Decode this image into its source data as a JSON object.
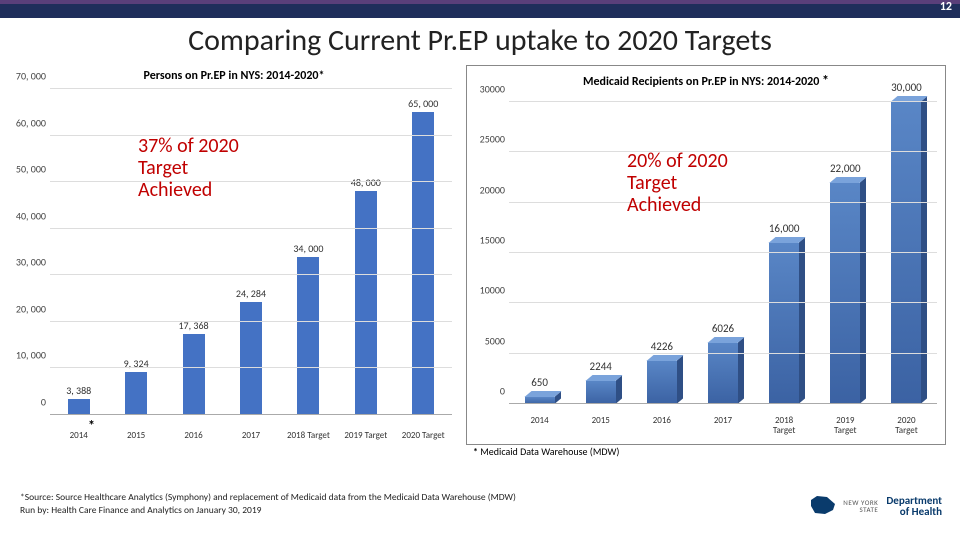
{
  "slide": {
    "number": "12"
  },
  "title": "Comparing Current Pr.EP uptake to 2020 Targets",
  "left_chart": {
    "type": "bar",
    "title": "Persons on Pr.EP in NYS: 2014-2020*",
    "ylim": [
      0,
      70000
    ],
    "ytick_step": 10000,
    "yticks": [
      "0",
      "10, 000",
      "20, 000",
      "30, 000",
      "40, 000",
      "50, 000",
      "60, 000",
      "70, 000"
    ],
    "categories": [
      "2014",
      "2015",
      "2016",
      "2017",
      "2018 Target",
      "2019 Target",
      "2020 Target"
    ],
    "values": [
      3388,
      9324,
      17368,
      24284,
      34000,
      48000,
      65000
    ],
    "value_labels": [
      "3, 388",
      "9, 324",
      "17, 368",
      "24, 284",
      "34, 000",
      "48, 000",
      "65, 000"
    ],
    "bar_color": "#4472c4",
    "grid_color": "#dddddd",
    "background_color": "#ffffff",
    "annotation": "37% of 2020\nTarget\nAchieved",
    "annotation_color": "#c00000",
    "asterisk_marker": "*"
  },
  "right_chart": {
    "type": "bar-3d",
    "title": "Medicaid  Recipients on Pr.EP in NYS:  2014-2020",
    "title_asterisk": "*",
    "ylim": [
      0,
      30000
    ],
    "ytick_step": 5000,
    "yticks": [
      "0",
      "5000",
      "10000",
      "15000",
      "20000",
      "25000",
      "30000"
    ],
    "categories": [
      "2014",
      "2015",
      "2016",
      "2017",
      "2018\nTarget",
      "2019\nTarget",
      "2020\nTarget"
    ],
    "values": [
      650,
      2244,
      4226,
      6026,
      16000,
      22000,
      30000
    ],
    "value_labels": [
      "650",
      "2244",
      "4226",
      "6026",
      "16,000",
      "22,000",
      "30,000"
    ],
    "bar_face_gradient": [
      "#5986c6",
      "#3b62a3"
    ],
    "bar_top_color": "#7aa3db",
    "bar_side_color": "#2f4f85",
    "grid_color": "#dddddd",
    "background_color": "#ffffff",
    "annotation": "20% of 2020\nTarget\nAchieved",
    "annotation_color": "#c00000",
    "mdw_note_prefix": "*",
    "mdw_note": "Medicaid Data Warehouse (MDW)"
  },
  "source": {
    "line1": "*Source: Source Healthcare Analytics (Symphony) and replacement of Medicaid data from the Medicaid Data Warehouse (MDW)",
    "line2": "Run by: Health Care Finance and Analytics on January 30, 2019"
  },
  "logo": {
    "state_label": "NEW YORK",
    "state_sub": "STATE",
    "dept1": "Department",
    "dept2": "of Health"
  }
}
